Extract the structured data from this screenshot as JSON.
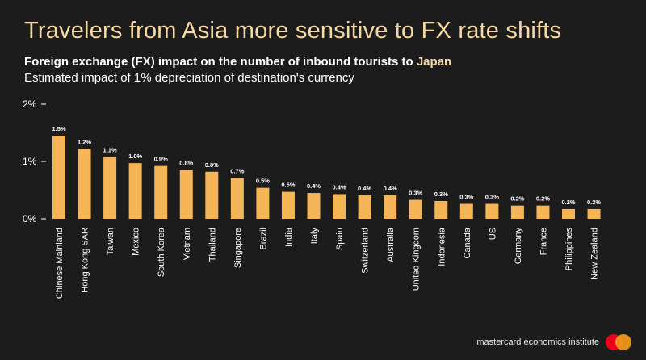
{
  "headline": "Travelers from Asia more sensitive to FX rate shifts",
  "subtitle_prefix": "Foreign exchange (FX) impact on the number of inbound tourists to ",
  "subtitle_highlight": "Japan",
  "caption": "Estimated impact of 1% depreciation of destination's currency",
  "footer": {
    "brand_text": "mastercard economics institute",
    "logo_icon": "mastercard-logo-icon"
  },
  "colors": {
    "bar": "#f5b556",
    "headline": "#f5d9a4",
    "background": "#1d1c1c"
  },
  "chart_data": {
    "type": "bar",
    "title": "Foreign exchange (FX) impact on the number of inbound tourists to Japan",
    "subtitle": "Estimated impact of 1% depreciation of destination's currency",
    "xlabel": "",
    "ylabel": "",
    "ylim": [
      0,
      2
    ],
    "yticks": [
      0,
      1,
      2
    ],
    "ytick_labels": [
      "0%",
      "1%",
      "2%"
    ],
    "grid": false,
    "categories": [
      "Chinese Mainland",
      "Hong Kong SAR",
      "Taiwan",
      "Mexico",
      "South Korea",
      "Vietnam",
      "Thailand",
      "Singapore",
      "Brazil",
      "India",
      "Italy",
      "Spain",
      "Switzerland",
      "Australia",
      "United Kingdom",
      "Indonesia",
      "Canada",
      "US",
      "Germany",
      "France",
      "Philippines",
      "New Zealand"
    ],
    "values": [
      1.45,
      1.22,
      1.08,
      0.97,
      0.92,
      0.85,
      0.82,
      0.71,
      0.54,
      0.47,
      0.45,
      0.43,
      0.41,
      0.41,
      0.33,
      0.31,
      0.26,
      0.26,
      0.23,
      0.23,
      0.17,
      0.17
    ],
    "data_labels": [
      "1.5%",
      "1.2%",
      "1.1%",
      "1.0%",
      "0.9%",
      "0.8%",
      "0.8%",
      "0.7%",
      "0.5%",
      "0.5%",
      "0.4%",
      "0.4%",
      "0.4%",
      "0.4%",
      "0.3%",
      "0.3%",
      "0.3%",
      "0.3%",
      "0.2%",
      "0.2%",
      "0.2%",
      "0.2%"
    ]
  }
}
